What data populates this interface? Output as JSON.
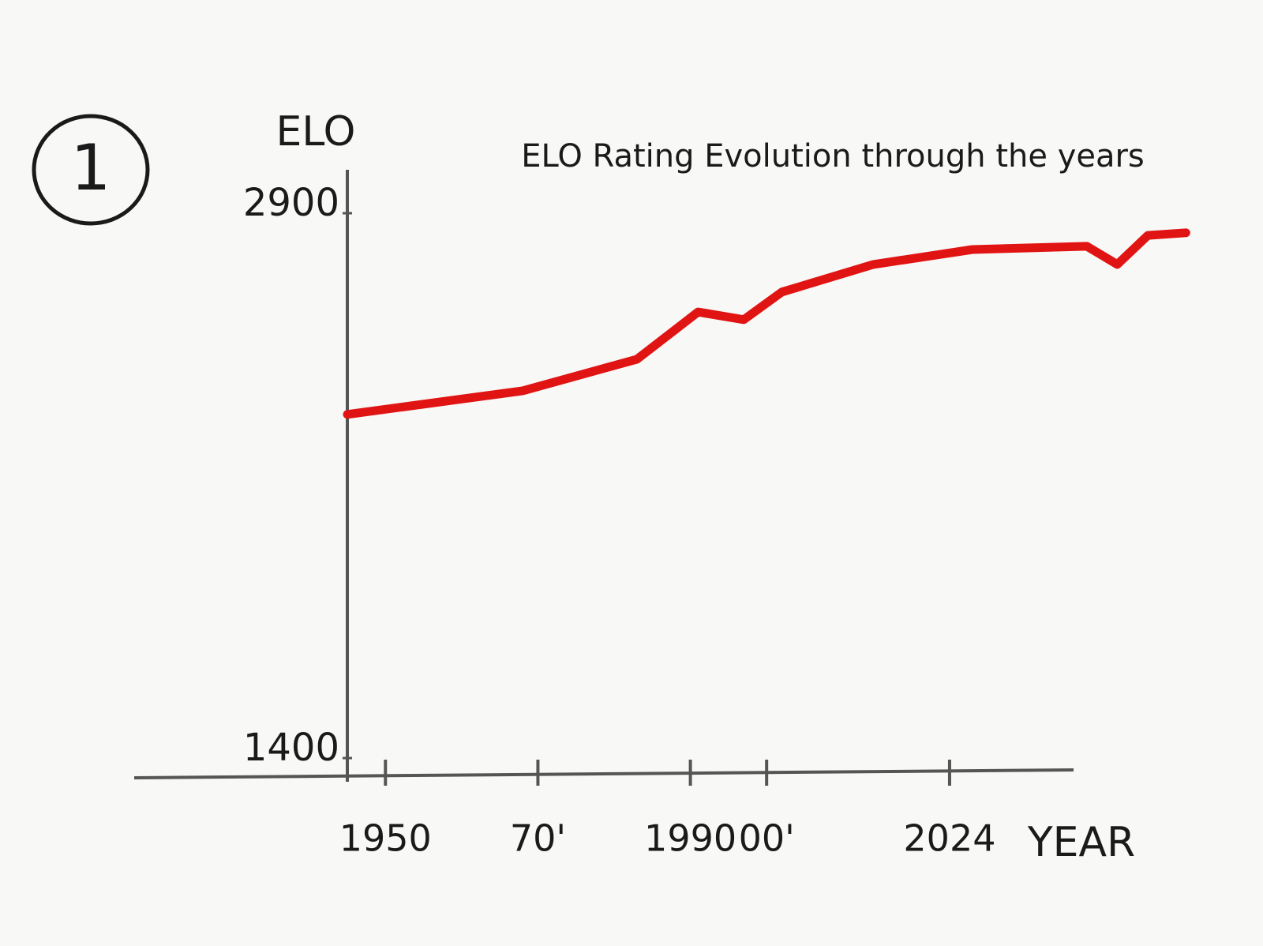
{
  "chart_data": {
    "type": "line",
    "annotation": "1",
    "title": "ELO Rating Evolution through the years",
    "y_label": "ELO",
    "x_label": "YEAR",
    "x": [
      1945,
      1968,
      1983,
      1991,
      1997,
      2002,
      2014,
      2027,
      2042,
      2046,
      2050,
      2055
    ],
    "values": [
      2346,
      2411,
      2498,
      2628,
      2607,
      2683,
      2759,
      2800,
      2809,
      2759,
      2839,
      2846
    ],
    "color": "#e11414",
    "xlim": [
      1945,
      2056
    ],
    "ylim": [
      1400,
      2900
    ],
    "xticks": [
      1950,
      {
        "value": 1970,
        "label": "70'"
      },
      1990,
      {
        "value": 2000,
        "label": "00'"
      },
      2024
    ],
    "yticks": [
      1400,
      2900
    ],
    "grid": false
  }
}
